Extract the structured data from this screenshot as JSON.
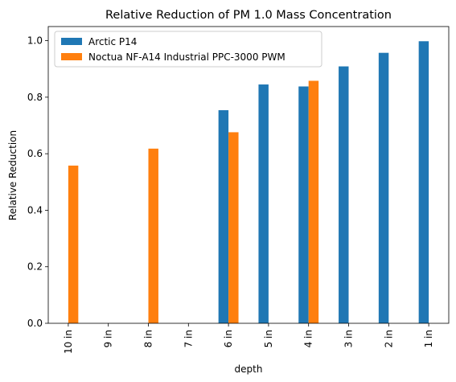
{
  "chart_data": {
    "type": "bar",
    "title": "Relative Reduction of PM 1.0 Mass Concentration",
    "xlabel": "depth",
    "ylabel": "Relative Reduction",
    "categories": [
      "10 in",
      "9 in",
      "8 in",
      "7 in",
      "6 in",
      "5 in",
      "4 in",
      "3 in",
      "2 in",
      "1 in"
    ],
    "series": [
      {
        "name": "Arctic P14",
        "color": "#1f77b4",
        "values": [
          null,
          null,
          null,
          null,
          0.754,
          0.845,
          0.838,
          0.909,
          0.957,
          0.998
        ]
      },
      {
        "name": "Noctua NF-A14 Industrial PPC-3000 PWM",
        "color": "#ff7f0e",
        "values": [
          0.558,
          null,
          0.618,
          null,
          0.676,
          null,
          0.858,
          null,
          null,
          null
        ]
      }
    ],
    "ylim": [
      0,
      1.05
    ],
    "yticks": [
      0.0,
      0.2,
      0.4,
      0.6,
      0.8,
      1.0
    ],
    "ytick_labels": [
      "0.0",
      "0.2",
      "0.4",
      "0.6",
      "0.8",
      "1.0"
    ],
    "legend_position": "upper-left",
    "grid": false
  }
}
